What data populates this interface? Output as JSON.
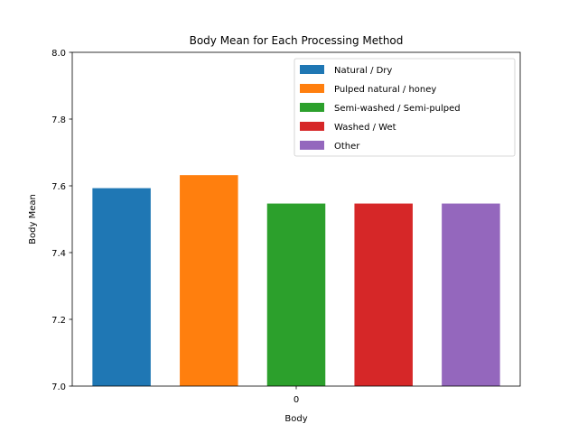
{
  "chart_data": {
    "type": "bar",
    "title": "Body Mean for Each Processing Method",
    "xlabel": "Body",
    "ylabel": "Body Mean",
    "categories": [
      "0"
    ],
    "ylim": [
      7.0,
      8.0
    ],
    "yticks": [
      "7.0",
      "7.2",
      "7.4",
      "7.6",
      "7.8",
      "8.0"
    ],
    "grid": false,
    "legend_position": "top-right",
    "series": [
      {
        "name": "Natural / Dry",
        "values": [
          7.593
        ],
        "color": "#1f77b4"
      },
      {
        "name": "Pulped natural / honey",
        "values": [
          7.632
        ],
        "color": "#ff7f0e"
      },
      {
        "name": "Semi-washed / Semi-pulped",
        "values": [
          7.547
        ],
        "color": "#2ca02c"
      },
      {
        "name": "Washed / Wet",
        "values": [
          7.547
        ],
        "color": "#d62728"
      },
      {
        "name": "Other",
        "values": [
          7.547
        ],
        "color": "#9467bd"
      }
    ]
  }
}
